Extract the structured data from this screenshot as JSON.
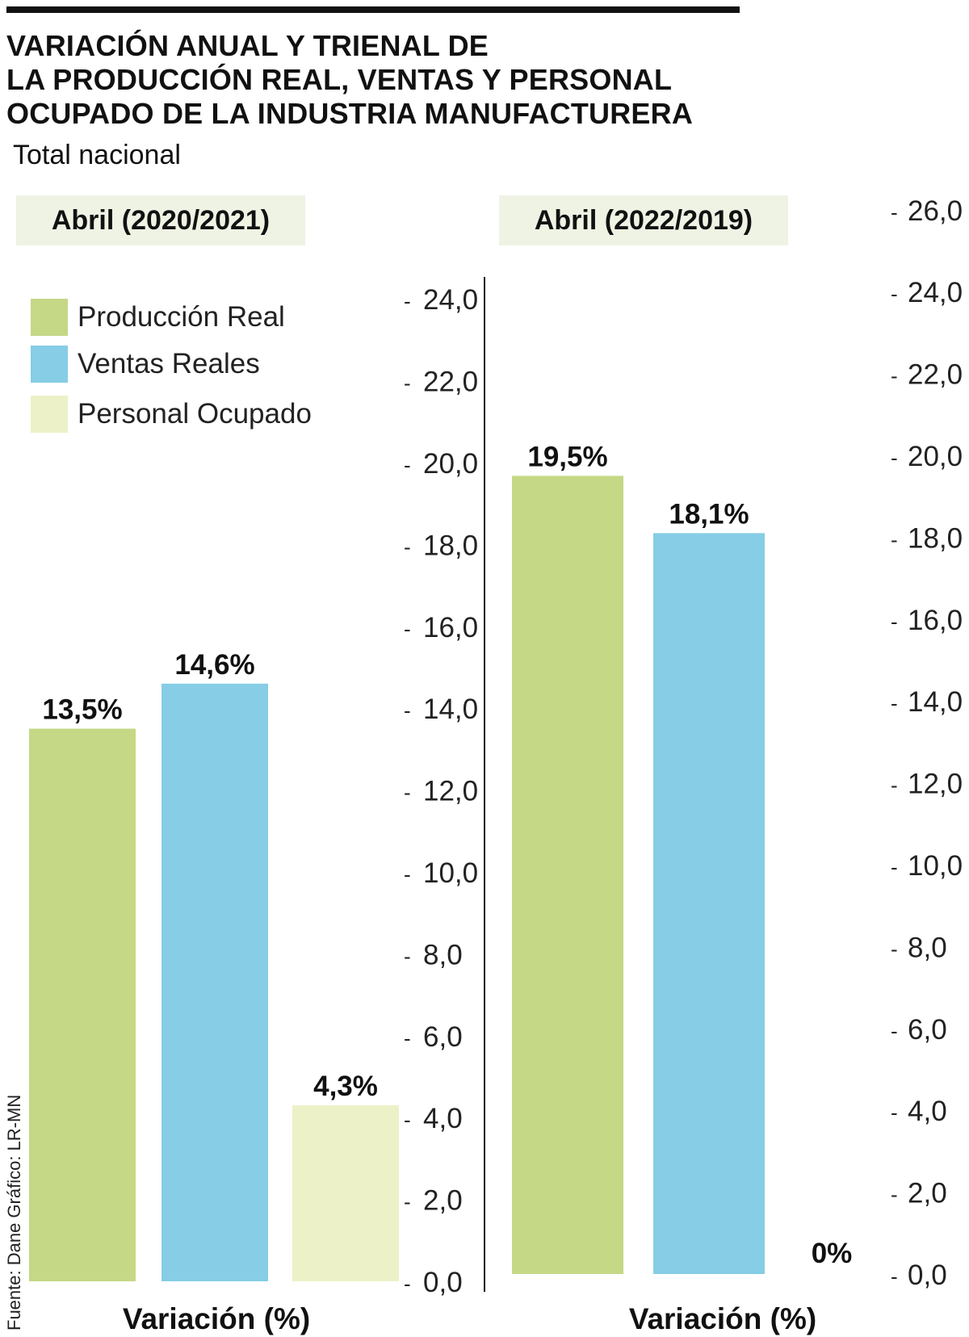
{
  "title_lines": [
    "VARIACIÓN ANUAL Y TRIENAL DE",
    "LA PRODUCCIÓN REAL, VENTAS Y PERSONAL",
    "OCUPADO DE LA INDUSTRIA MANUFACTURERA"
  ],
  "subtitle": "Total nacional",
  "source": "Fuente: Dane  Gráfico: LR-MN",
  "legend": [
    {
      "label": "Producción Real",
      "color": "#c5d886"
    },
    {
      "label": "Ventas Reales",
      "color": "#86cde5"
    },
    {
      "label": "Personal Ocupado",
      "color": "#edf1c8"
    }
  ],
  "chart_data": [
    {
      "type": "bar",
      "title": "Abril (2020/2021)",
      "xlabel": "Variación (%)",
      "ylabel": "",
      "categories": [
        "Producción Real",
        "Ventas Reales",
        "Personal Ocupado"
      ],
      "values": [
        13.5,
        14.6,
        4.3
      ],
      "data_labels": [
        "13,5%",
        "14,6%",
        "4,3%"
      ],
      "colors": [
        "#c5d886",
        "#86cde5",
        "#edf1c8"
      ],
      "ylim": [
        0,
        24
      ],
      "yticks": [
        "0,0",
        "2,0",
        "4,0",
        "6,0",
        "8,0",
        "10,0",
        "12,0",
        "14,0",
        "16,0",
        "18,0",
        "20,0",
        "22,0",
        "24,0"
      ],
      "grid": false
    },
    {
      "type": "bar",
      "title": "Abril (2022/2019)",
      "xlabel": "Variación (%)",
      "ylabel": "",
      "categories": [
        "Producción Real",
        "Ventas Reales",
        "Personal Ocupado"
      ],
      "values": [
        19.5,
        18.1,
        0
      ],
      "data_labels": [
        "19,5%",
        "18,1%",
        "0%"
      ],
      "colors": [
        "#c5d886",
        "#86cde5",
        "#edf1c8"
      ],
      "ylim": [
        0,
        26
      ],
      "yticks": [
        "0,0",
        "2,0",
        "4,0",
        "6,0",
        "8,0",
        "10,0",
        "12,0",
        "14,0",
        "16,0",
        "18,0",
        "20,0",
        "22,0",
        "24,0",
        "26,0"
      ],
      "grid": false
    }
  ]
}
